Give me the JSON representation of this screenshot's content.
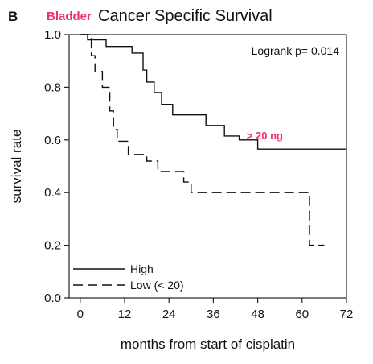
{
  "chart_data": {
    "type": "line",
    "panel_label": "B",
    "title_highlight": "Bladder",
    "title": "Cancer Specific Survival",
    "xlabel": "months from start of cisplatin",
    "ylabel": "survival rate",
    "xlim": [
      -3,
      72
    ],
    "ylim": [
      0,
      1.0
    ],
    "xticks": [
      0,
      12,
      24,
      36,
      48,
      60,
      72
    ],
    "yticks": [
      0.0,
      0.2,
      0.4,
      0.6,
      0.8,
      1.0
    ],
    "ytick_labels": [
      "0.0",
      "0.2",
      "0.4",
      "0.6",
      "0.8",
      "1.0"
    ],
    "xtick_labels": [
      "0",
      "12",
      "24",
      "36",
      "48",
      "60",
      "72"
    ],
    "annotation": "Logrank p= 0.014",
    "highlight_label": "> 20 ng",
    "legend_position": "bottom-left",
    "series": [
      {
        "name": "High",
        "style": "solid",
        "color": "#111111",
        "x": [
          0,
          2,
          2,
          7,
          7,
          14,
          14,
          17,
          17,
          18,
          18,
          20,
          20,
          22,
          22,
          25,
          25,
          34,
          34,
          39,
          39,
          43,
          43,
          48,
          48,
          72
        ],
        "y": [
          1.0,
          1.0,
          0.98,
          0.98,
          0.955,
          0.955,
          0.93,
          0.93,
          0.865,
          0.865,
          0.82,
          0.82,
          0.78,
          0.78,
          0.735,
          0.735,
          0.695,
          0.695,
          0.655,
          0.655,
          0.615,
          0.615,
          0.6,
          0.6,
          0.565,
          0.565
        ]
      },
      {
        "name": "Low (< 20)",
        "style": "dashed",
        "color": "#111111",
        "x": [
          0,
          3,
          3,
          4,
          4,
          6,
          6,
          8,
          8,
          9,
          9,
          10,
          10,
          13,
          13,
          18,
          18,
          21,
          21,
          28,
          28,
          30,
          30,
          62,
          62,
          66
        ],
        "y": [
          1.0,
          1.0,
          0.92,
          0.92,
          0.86,
          0.86,
          0.8,
          0.8,
          0.71,
          0.71,
          0.64,
          0.64,
          0.595,
          0.595,
          0.545,
          0.545,
          0.52,
          0.52,
          0.48,
          0.48,
          0.44,
          0.44,
          0.4,
          0.4,
          0.2,
          0.2
        ]
      }
    ]
  }
}
